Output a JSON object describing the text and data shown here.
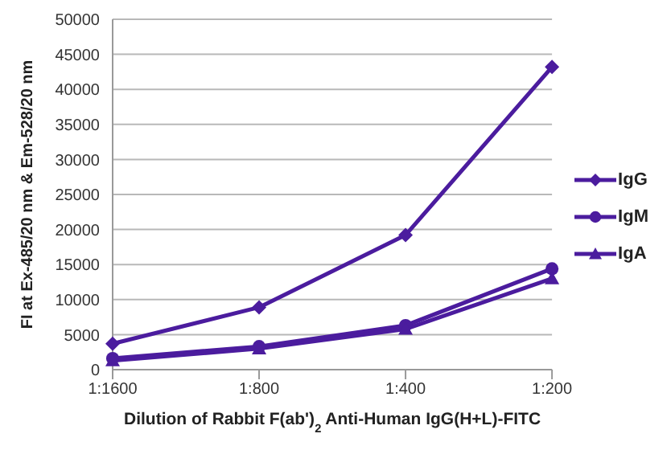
{
  "chart_data": {
    "type": "line",
    "xlabel": "Dilution of Rabbit F(ab')$_{2}$ Anti-Human IgG(H+L)-FITC",
    "ylabel": "FI at Ex-485/20 nm & Em-528/20 nm",
    "categories": [
      "1:1600",
      "1:800",
      "1:400",
      "1:200"
    ],
    "series": [
      {
        "name": "IgG",
        "color": "#4b1c9e",
        "marker": "diamond",
        "values": [
          3700,
          8900,
          19200,
          43200
        ]
      },
      {
        "name": "IgM",
        "color": "#4b1c9e",
        "marker": "circle",
        "values": [
          1600,
          3300,
          6300,
          14400
        ]
      },
      {
        "name": "IgA",
        "color": "#4b1c9e",
        "marker": "triangle",
        "values": [
          1300,
          3000,
          5800,
          13000
        ]
      }
    ],
    "ylim": [
      0,
      50000
    ],
    "yticks": [
      0,
      5000,
      10000,
      15000,
      20000,
      25000,
      30000,
      35000,
      40000,
      45000,
      50000
    ],
    "grid": "y",
    "legend": "right",
    "line_style": "solid"
  }
}
